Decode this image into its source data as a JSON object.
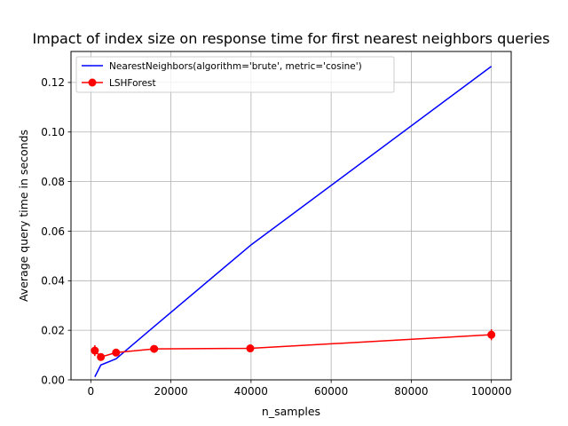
{
  "chart_data": {
    "type": "line",
    "title": "Impact of index size on response time for first nearest neighbors queries",
    "xlabel": "n_samples",
    "ylabel": "Average query time in seconds",
    "xlim": [
      -4950,
      104950
    ],
    "ylim": [
      0.0,
      0.1325
    ],
    "xticks": [
      0,
      20000,
      40000,
      60000,
      80000,
      100000
    ],
    "xtick_labels": [
      "0",
      "20000",
      "40000",
      "60000",
      "80000",
      "100000"
    ],
    "yticks": [
      0.0,
      0.02,
      0.04,
      0.06,
      0.08,
      0.1,
      0.12
    ],
    "ytick_labels": [
      "0.00",
      "0.02",
      "0.04",
      "0.06",
      "0.08",
      "0.10",
      "0.12"
    ],
    "grid": true,
    "legend_position": "upper-left",
    "series": [
      {
        "name": "NearestNeighbors(algorithm='brute', metric='cosine')",
        "color": "#0000ff",
        "marker": "none",
        "x": [
          1000,
          2500,
          6300,
          15800,
          39800,
          100000
        ],
        "y": [
          0.0012,
          0.006,
          0.0085,
          0.0215,
          0.0542,
          0.1265
        ]
      },
      {
        "name": "LSHForest",
        "color": "#ff0000",
        "marker": "circle",
        "x": [
          1000,
          2500,
          6300,
          15800,
          39800,
          100000
        ],
        "y": [
          0.0118,
          0.0092,
          0.011,
          0.0125,
          0.0127,
          0.0182
        ],
        "yerr": [
          0.0022,
          0.0009,
          0.0011,
          0.0011,
          0.0007,
          0.0022
        ]
      }
    ]
  }
}
